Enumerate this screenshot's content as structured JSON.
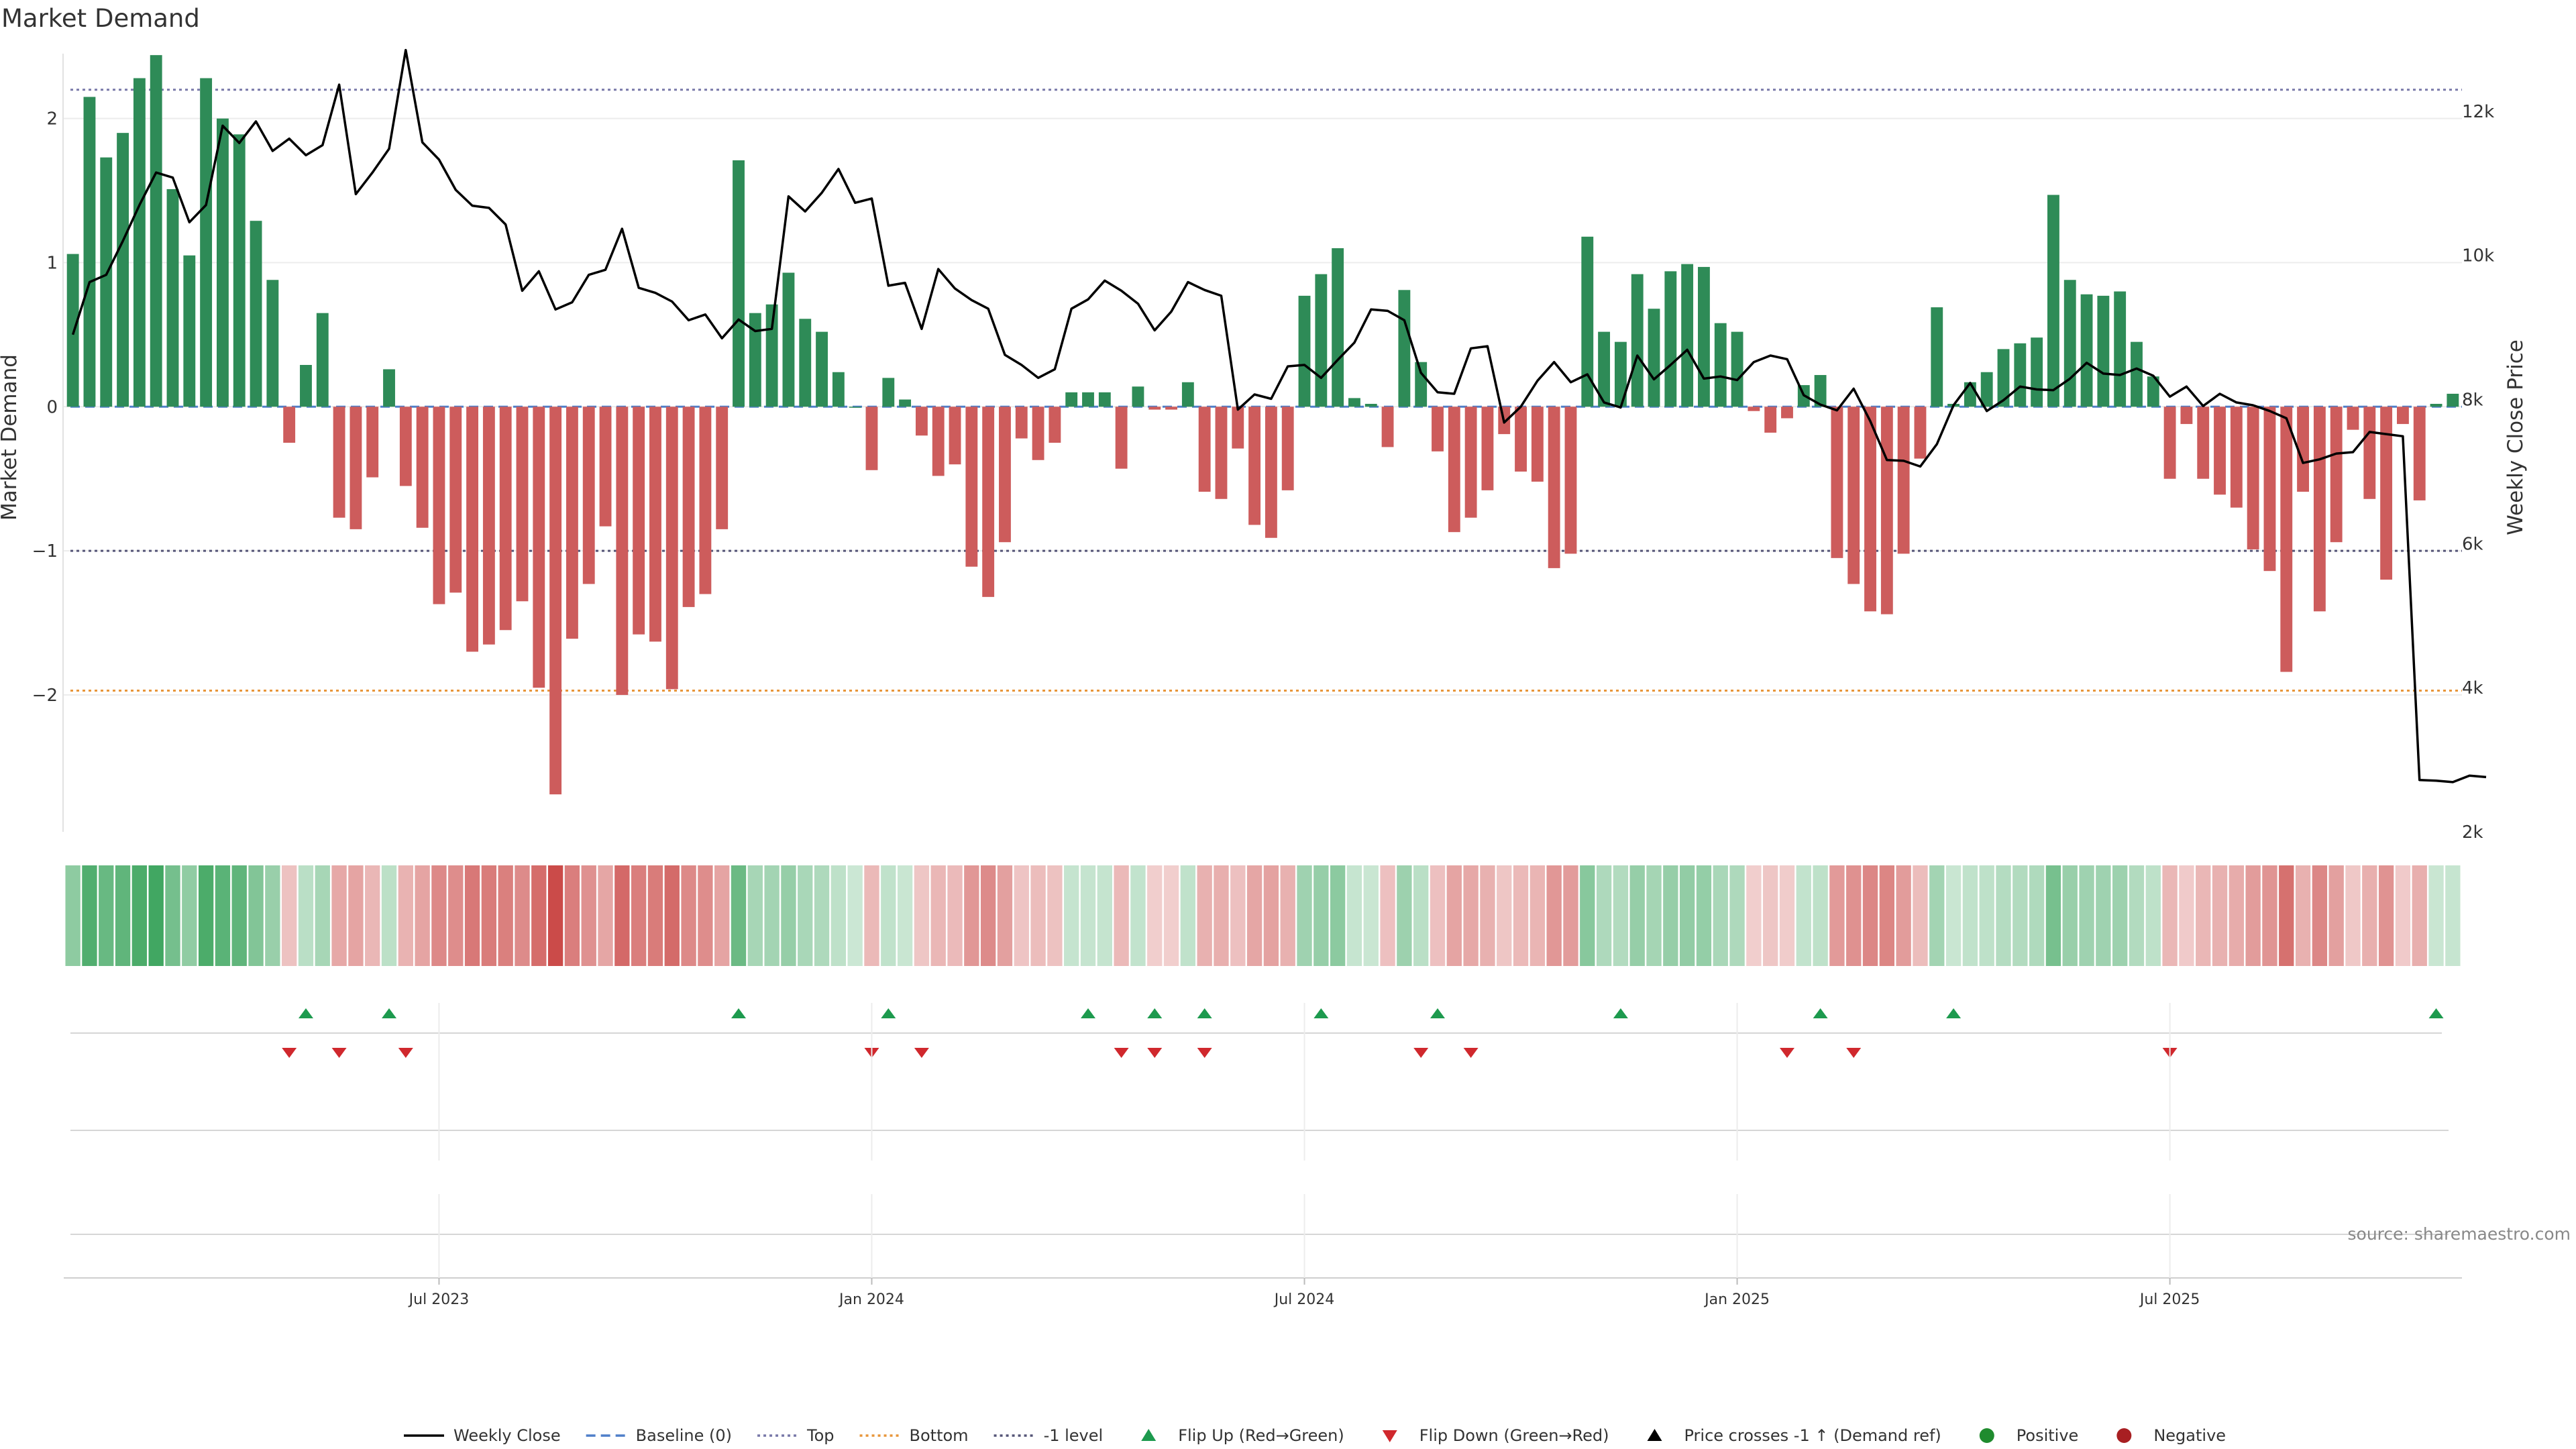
{
  "chart_data": {
    "type": "bar",
    "title": "Market Demand",
    "ylabel_left": "Market Demand",
    "ylabel_right": "Weekly Close Price",
    "ylim_left": [
      -2.95,
      2.45
    ],
    "ylim_right": [
      2000,
      12800
    ],
    "yticks_left": [
      2,
      1,
      0,
      -1,
      -2
    ],
    "ytick_labels_left": [
      "2",
      "1",
      "0",
      "−1",
      "−2"
    ],
    "yticks_right": [
      12000,
      10000,
      8000,
      6000,
      4000,
      2000
    ],
    "ytick_labels_right": [
      "12k",
      "10k",
      "8k",
      "6k",
      "4k",
      "2k"
    ],
    "reference_lines": {
      "top": 2.2,
      "bottom": -1.97,
      "minus_one": -1
    },
    "x_ticks": [
      {
        "index": 22,
        "label": "Jul 2023"
      },
      {
        "index": 48,
        "label": "Jan 2024"
      },
      {
        "index": 74,
        "label": "Jul 2024"
      },
      {
        "index": 100,
        "label": "Jan 2025"
      },
      {
        "index": 126,
        "label": "Jul 2025"
      }
    ],
    "series": [
      {
        "name": "Market Demand",
        "values": [
          1.06,
          2.15,
          1.73,
          1.9,
          2.28,
          2.44,
          1.51,
          1.05,
          2.28,
          2.0,
          1.89,
          1.29,
          0.88,
          -0.25,
          0.29,
          0.65,
          -0.77,
          -0.85,
          -0.49,
          0.26,
          -0.55,
          -0.84,
          -1.37,
          -1.29,
          -1.7,
          -1.65,
          -1.55,
          -1.35,
          -1.95,
          -2.69,
          -1.61,
          -1.23,
          -0.83,
          -2.0,
          -1.58,
          -1.63,
          -1.96,
          -1.39,
          -1.3,
          -0.85,
          1.71,
          0.65,
          0.71,
          0.93,
          0.61,
          0.52,
          0.24,
          0.0,
          -0.44,
          0.2,
          0.05,
          -0.2,
          -0.48,
          -0.4,
          -1.11,
          -1.32,
          -0.94,
          -0.22,
          -0.37,
          -0.25,
          0.1,
          0.1,
          0.1,
          -0.43,
          0.14,
          -0.02,
          -0.02,
          0.17,
          -0.59,
          -0.64,
          -0.29,
          -0.82,
          -0.91,
          -0.58,
          0.77,
          0.92,
          1.1,
          0.06,
          0.02,
          -0.28,
          0.81,
          0.31,
          -0.31,
          -0.87,
          -0.77,
          -0.58,
          -0.19,
          -0.45,
          -0.52,
          -1.12,
          -1.02,
          1.18,
          0.52,
          0.45,
          0.92,
          0.68,
          0.94,
          0.99,
          0.97,
          0.58,
          0.52,
          -0.03,
          -0.18,
          -0.08,
          0.15,
          0.22,
          -1.05,
          -1.23,
          -1.42,
          -1.44,
          -1.02,
          -0.36,
          0.69,
          0.02,
          0.17,
          0.24,
          0.4,
          0.44,
          0.48,
          1.47,
          0.88,
          0.78,
          0.77,
          0.8,
          0.45,
          0.21,
          -0.5,
          -0.12,
          -0.5,
          -0.61,
          -0.7,
          -0.99,
          -1.14,
          -1.84,
          -0.59,
          -1.42,
          -0.94,
          -0.16,
          -0.64,
          -1.2,
          -0.12,
          -0.65,
          0.02,
          0.09
        ]
      },
      {
        "name": "Weekly Close",
        "values": [
          8900,
          9630,
          9730,
          10200,
          10700,
          11150,
          11080,
          10460,
          10700,
          11800,
          11560,
          11860,
          11450,
          11620,
          11390,
          11530,
          12370,
          10850,
          11150,
          11480,
          12850,
          11570,
          11330,
          10910,
          10690,
          10660,
          10430,
          9510,
          9780,
          9250,
          9350,
          9730,
          9800,
          10370,
          9550,
          9480,
          9360,
          9100,
          9180,
          8850,
          9110,
          8950,
          8980,
          10820,
          10610,
          10870,
          11200,
          10730,
          10790,
          9580,
          9620,
          8980,
          9810,
          9540,
          9380,
          9260,
          8620,
          8480,
          8300,
          8420,
          9260,
          9390,
          9650,
          9510,
          9330,
          8960,
          9220,
          9630,
          9520,
          9440,
          7860,
          8070,
          8010,
          8460,
          8480,
          8300,
          8550,
          8790,
          9250,
          9230,
          9100,
          8370,
          8100,
          8080,
          8710,
          8740,
          7680,
          7900,
          8260,
          8520,
          8240,
          8350,
          7960,
          7890,
          8610,
          8280,
          8480,
          8690,
          8290,
          8320,
          8270,
          8520,
          8610,
          8560,
          8060,
          7930,
          7850,
          8150,
          7700,
          7160,
          7150,
          7070,
          7380,
          7920,
          8230,
          7840,
          7990,
          8180,
          8140,
          8130,
          8290,
          8510,
          8360,
          8340,
          8430,
          8330,
          8040,
          8180,
          7910,
          8080,
          7960,
          7920,
          7840,
          7740,
          7120,
          7170,
          7250,
          7270,
          7550,
          7520,
          7490,
          2720,
          2710,
          2690,
          2780,
          2760
        ]
      }
    ],
    "flip_up_indices": [
      14,
      19,
      40,
      49,
      61,
      65,
      68,
      75,
      82,
      93,
      105,
      113,
      142
    ],
    "flip_down_indices": [
      13,
      16,
      20,
      48,
      51,
      63,
      65,
      68,
      81,
      84,
      103,
      107,
      126
    ],
    "legend": [
      {
        "label": "Weekly Close",
        "marker": "line-solid",
        "color": "#000000"
      },
      {
        "label": "Baseline (0)",
        "marker": "line-dashed",
        "color": "#4f7fc9"
      },
      {
        "label": "Top",
        "marker": "line-dotted",
        "color": "#7878a8"
      },
      {
        "label": "Bottom",
        "marker": "line-dotted",
        "color": "#e8963a"
      },
      {
        "label": "-1 level",
        "marker": "line-dotted",
        "color": "#555577"
      },
      {
        "label": "Flip Up (Red→Green)",
        "marker": "triangle-up",
        "color": "#1d9a4e"
      },
      {
        "label": "Flip Down (Green→Red)",
        "marker": "triangle-down",
        "color": "#d0282d"
      },
      {
        "label": "Price crosses -1 ↑ (Demand ref)",
        "marker": "triangle-up",
        "color": "#000000"
      },
      {
        "label": "Positive",
        "marker": "circle",
        "color": "#1f8b2e"
      },
      {
        "label": "Negative",
        "marker": "circle",
        "color": "#a81f22"
      }
    ],
    "colors": {
      "positive_bar": "#2e8b57",
      "negative_bar": "#cd5c5c",
      "price_line": "#000000",
      "top_line": "#7878a8",
      "bottom_line": "#e8963a",
      "minus_one_line": "#555577",
      "flip_up": "#1d9a4e",
      "flip_down": "#d0282d"
    }
  },
  "source_note": "source: sharemaestro.com"
}
